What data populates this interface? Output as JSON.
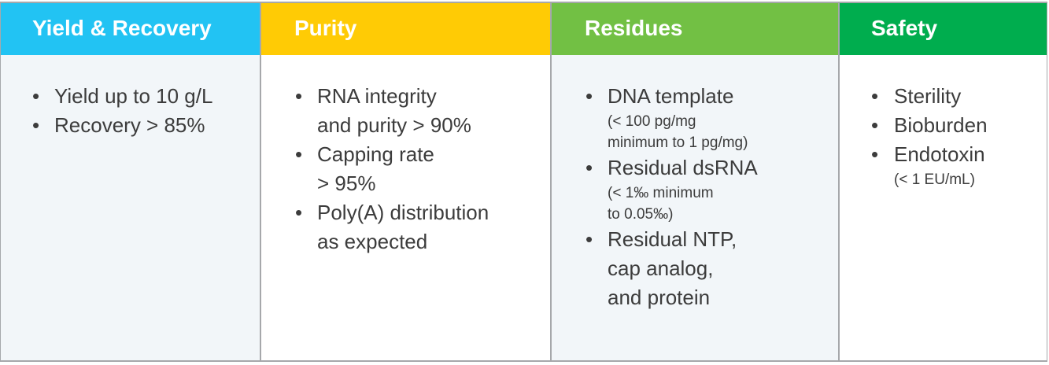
{
  "columns": [
    {
      "title": "Yield & Recovery",
      "color": "#22c3f3",
      "items": [
        {
          "lines": [
            "Yield up to 10 g/L"
          ],
          "sub": []
        },
        {
          "lines": [
            "Recovery > 85%"
          ],
          "sub": []
        }
      ]
    },
    {
      "title": "Purity",
      "color": "#ffcb05",
      "items": [
        {
          "lines": [
            "RNA integrity",
            "and purity > 90%"
          ],
          "sub": []
        },
        {
          "lines": [
            "Capping rate",
            "> 95%"
          ],
          "sub": []
        },
        {
          "lines": [
            "Poly(A) distribution",
            "as expected"
          ],
          "sub": []
        }
      ]
    },
    {
      "title": "Residues",
      "color": "#72c044",
      "items": [
        {
          "lines": [
            "DNA template"
          ],
          "sub": [
            "(< 100 pg/mg",
            " minimum to 1 pg/mg)"
          ]
        },
        {
          "lines": [
            "Residual dsRNA"
          ],
          "sub": [
            "(< 1‰ minimum",
            "to 0.05‰)"
          ]
        },
        {
          "lines": [
            "Residual NTP,",
            "cap analog,",
            "and protein"
          ],
          "sub": []
        }
      ]
    },
    {
      "title": "Safety",
      "color": "#00ad4e",
      "items": [
        {
          "lines": [
            "Sterility"
          ],
          "sub": []
        },
        {
          "lines": [
            "Bioburden"
          ],
          "sub": []
        },
        {
          "lines": [
            "Endotoxin"
          ],
          "sub": [
            "(< 1 EU/mL)"
          ]
        }
      ]
    }
  ],
  "bullet_glyph": "•"
}
